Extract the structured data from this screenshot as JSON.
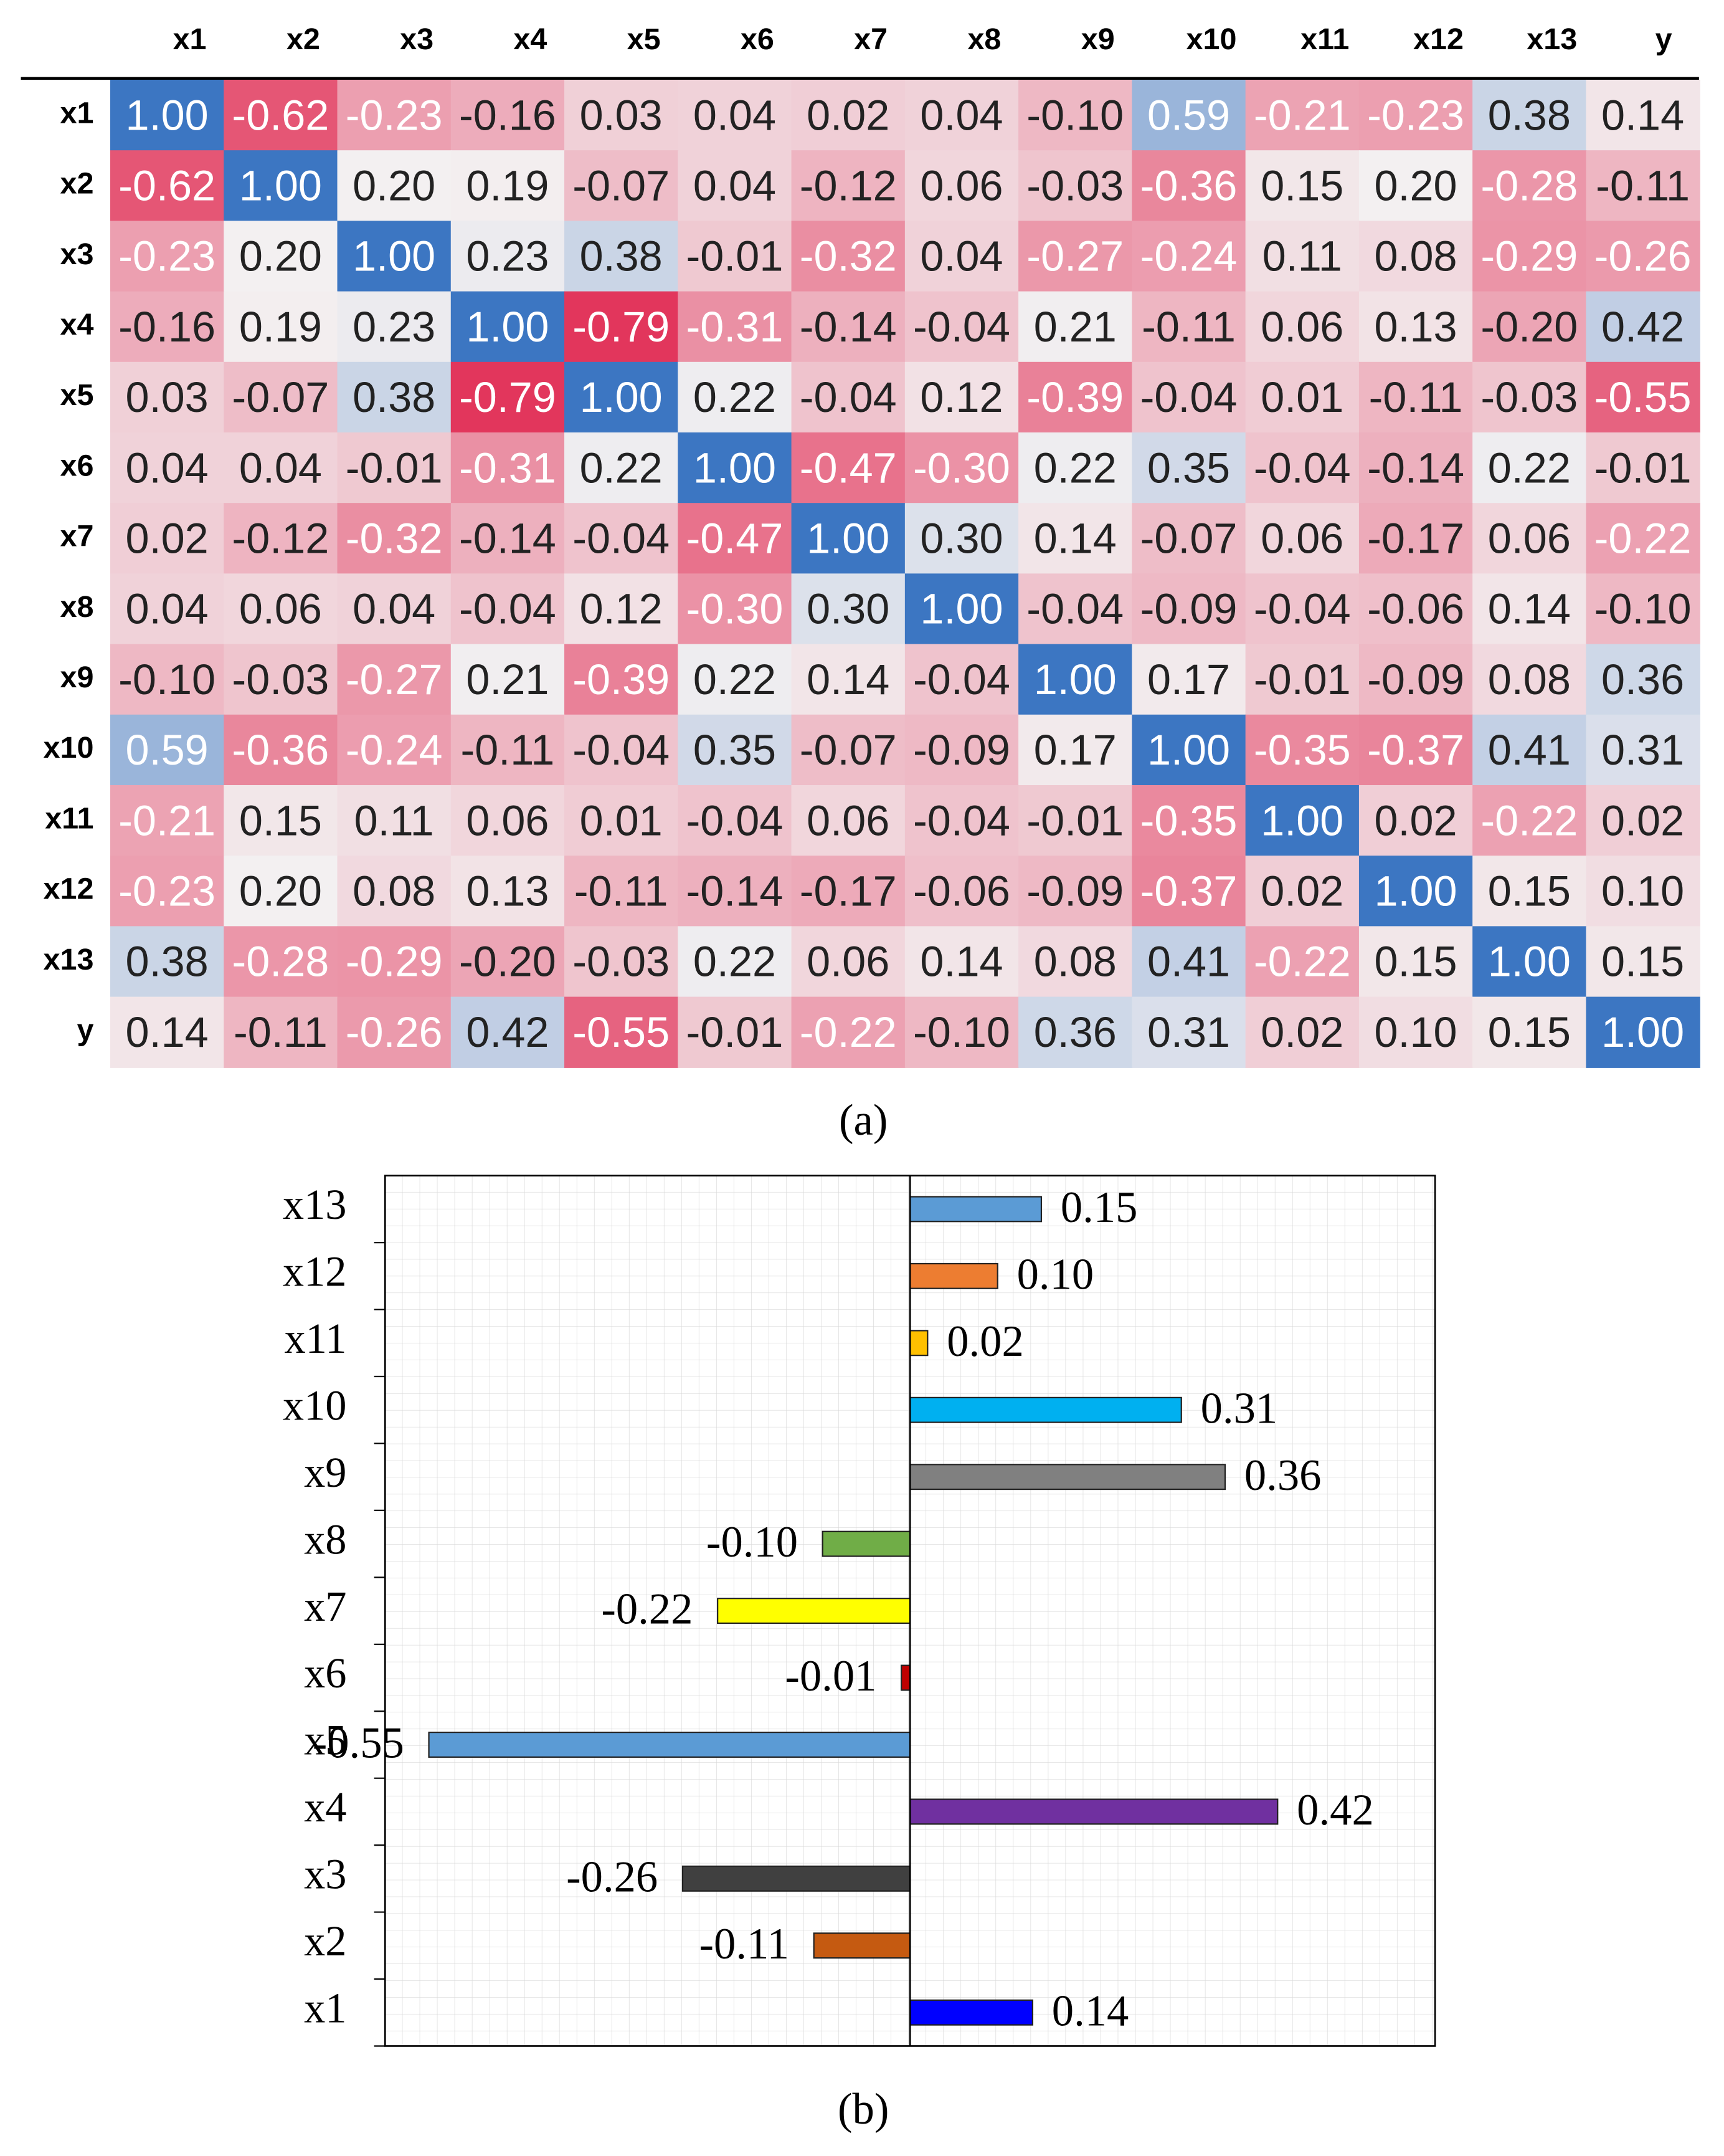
{
  "chart_data": [
    {
      "type": "heatmap",
      "caption": "(a)",
      "x_categories": [
        "x1",
        "x2",
        "x3",
        "x4",
        "x5",
        "x6",
        "x7",
        "x8",
        "x9",
        "x10",
        "x11",
        "x12",
        "x13",
        "y"
      ],
      "y_categories": [
        "x1",
        "x2",
        "x3",
        "x4",
        "x5",
        "x6",
        "x7",
        "x8",
        "x9",
        "x10",
        "x11",
        "x12",
        "x13",
        "y"
      ],
      "colormap": [
        "#e2345a",
        "#f3f0f1",
        "#3c76c2"
      ],
      "color_stops": [
        -0.8,
        0.2,
        1.0
      ],
      "values": [
        [
          1.0,
          -0.62,
          -0.23,
          -0.16,
          0.03,
          0.04,
          0.02,
          0.04,
          -0.1,
          0.59,
          -0.21,
          -0.23,
          0.38,
          0.14
        ],
        [
          -0.62,
          1.0,
          0.2,
          0.19,
          -0.07,
          0.04,
          -0.12,
          0.06,
          -0.03,
          -0.36,
          0.15,
          0.2,
          -0.28,
          -0.11
        ],
        [
          -0.23,
          0.2,
          1.0,
          0.23,
          0.38,
          -0.01,
          -0.32,
          0.04,
          -0.27,
          -0.24,
          0.11,
          0.08,
          -0.29,
          -0.26
        ],
        [
          -0.16,
          0.19,
          0.23,
          1.0,
          -0.79,
          -0.31,
          -0.14,
          -0.04,
          0.21,
          -0.11,
          0.06,
          0.13,
          -0.2,
          0.42
        ],
        [
          0.03,
          -0.07,
          0.38,
          -0.79,
          1.0,
          0.22,
          -0.04,
          0.12,
          -0.39,
          -0.04,
          0.01,
          -0.11,
          -0.03,
          -0.55
        ],
        [
          0.04,
          0.04,
          -0.01,
          -0.31,
          0.22,
          1.0,
          -0.47,
          -0.3,
          0.22,
          0.35,
          -0.04,
          -0.14,
          0.22,
          -0.01
        ],
        [
          0.02,
          -0.12,
          -0.32,
          -0.14,
          -0.04,
          -0.47,
          1.0,
          0.3,
          0.14,
          -0.07,
          0.06,
          -0.17,
          0.06,
          -0.22
        ],
        [
          0.04,
          0.06,
          0.04,
          -0.04,
          0.12,
          -0.3,
          0.3,
          1.0,
          -0.04,
          -0.09,
          -0.04,
          -0.06,
          0.14,
          -0.1
        ],
        [
          -0.1,
          -0.03,
          -0.27,
          0.21,
          -0.39,
          0.22,
          0.14,
          -0.04,
          1.0,
          0.17,
          -0.01,
          -0.09,
          0.08,
          0.36
        ],
        [
          0.59,
          -0.36,
          -0.24,
          -0.11,
          -0.04,
          0.35,
          -0.07,
          -0.09,
          0.17,
          1.0,
          -0.35,
          -0.37,
          0.41,
          0.31
        ],
        [
          -0.21,
          0.15,
          0.11,
          0.06,
          0.01,
          -0.04,
          0.06,
          -0.04,
          -0.01,
          -0.35,
          1.0,
          0.02,
          -0.22,
          0.02
        ],
        [
          -0.23,
          0.2,
          0.08,
          0.13,
          -0.11,
          -0.14,
          -0.17,
          -0.06,
          -0.09,
          -0.37,
          0.02,
          1.0,
          0.15,
          0.1
        ],
        [
          0.38,
          -0.28,
          -0.29,
          -0.2,
          -0.03,
          0.22,
          0.06,
          0.14,
          0.08,
          0.41,
          -0.22,
          0.15,
          1.0,
          0.15
        ],
        [
          0.14,
          -0.11,
          -0.26,
          0.42,
          -0.55,
          -0.01,
          -0.22,
          -0.1,
          0.36,
          0.31,
          0.02,
          0.1,
          0.15,
          1.0
        ]
      ],
      "value_labels": [
        [
          "1.00",
          "-0.62",
          "-0.23",
          "-0.16",
          "0.03",
          "0.04",
          "0.02",
          "0.04",
          "-0.10",
          "0.59",
          "-0.21",
          "-0.23",
          "0.38",
          "0.14"
        ],
        [
          "-0.62",
          "1.00",
          "0.20",
          "0.19",
          "-0.07",
          "0.04",
          "-0.12",
          "0.06",
          "-0.03",
          "-0.36",
          "0.15",
          "0.20",
          "-0.28",
          "-0.11"
        ],
        [
          "-0.23",
          "0.20",
          "1.00",
          "0.23",
          "0.38",
          "-0.01",
          "-0.32",
          "0.04",
          "-0.27",
          "-0.24",
          "0.11",
          "0.08",
          "-0.29",
          "-0.26"
        ],
        [
          "-0.16",
          "0.19",
          "0.23",
          "1.00",
          "-0.79",
          "-0.31",
          "-0.14",
          "-0.04",
          "0.21",
          "-0.11",
          "0.06",
          "0.13",
          "-0.20",
          "0.42"
        ],
        [
          "0.03",
          "-0.07",
          "0.38",
          "-0.79",
          "1.00",
          "0.22",
          "-0.04",
          "0.12",
          "-0.39",
          "-0.04",
          "0.01",
          "-0.11",
          "-0.03",
          "-0.55"
        ],
        [
          "0.04",
          "0.04",
          "-0.01",
          "-0.31",
          "0.22",
          "1.00",
          "-0.47",
          "-0.30",
          "0.22",
          "0.35",
          "-0.04",
          "-0.14",
          "0.22",
          "-0.01"
        ],
        [
          "0.02",
          "-0.12",
          "-0.32",
          "-0.14",
          "-0.04",
          "-0.47",
          "1.00",
          "0.30",
          "0.14",
          "-0.07",
          "0.06",
          "-0.17",
          "0.06",
          "-0.22"
        ],
        [
          "0.04",
          "0.06",
          "0.04",
          "-0.04",
          "0.12",
          "-0.30",
          "0.30",
          "1.00",
          "-0.04",
          "-0.09",
          "-0.04",
          "-0.06",
          "0.14",
          "-0.10"
        ],
        [
          "-0.10",
          "-0.03",
          "-0.27",
          "0.21",
          "-0.39",
          "0.22",
          "0.14",
          "-0.04",
          "1.00",
          "0.17",
          "-0.01",
          "-0.09",
          "0.08",
          "0.36"
        ],
        [
          "0.59",
          "-0.36",
          "-0.24",
          "-0.11",
          "-0.04",
          "0.35",
          "-0.07",
          "-0.09",
          "0.17",
          "1.00",
          "-0.35",
          "-0.37",
          "0.41",
          "0.31"
        ],
        [
          "-0.21",
          "0.15",
          "0.11",
          "0.06",
          "0.01",
          "-0.04",
          "0.06",
          "-0.04",
          "-0.01",
          "-0.35",
          "1.00",
          "0.02",
          "-0.22",
          "0.02"
        ],
        [
          "-0.23",
          "0.20",
          "0.08",
          "0.13",
          "-0.11",
          "-0.14",
          "-0.17",
          "-0.06",
          "-0.09",
          "-0.37",
          "0.02",
          "1.00",
          "0.15",
          "0.10"
        ],
        [
          "0.38",
          "-0.28",
          "-0.29",
          "-0.20",
          "-0.03",
          "0.22",
          "0.06",
          "0.14",
          "0.08",
          "0.41",
          "-0.22",
          "0.15",
          "1.00",
          "0.15"
        ],
        [
          "0.14",
          "-0.11",
          "-0.26",
          "0.42",
          "-0.55",
          "-0.01",
          "-0.22",
          "-0.10",
          "0.36",
          "0.31",
          "0.02",
          "0.10",
          "0.15",
          "1.00"
        ]
      ]
    },
    {
      "type": "barh",
      "caption": "(b)",
      "categories": [
        "x1",
        "x2",
        "x3",
        "x4",
        "x5",
        "x6",
        "x7",
        "x8",
        "x9",
        "x10",
        "x11",
        "x12",
        "x13"
      ],
      "values": [
        0.14,
        -0.11,
        -0.26,
        0.42,
        -0.55,
        -0.01,
        -0.22,
        -0.1,
        0.36,
        0.31,
        0.02,
        0.1,
        0.15
      ],
      "value_labels": [
        "0.14",
        "-0.11",
        "-0.26",
        "0.42",
        "-0.55",
        "-0.01",
        "-0.22",
        "-0.10",
        "0.36",
        "0.31",
        "0.02",
        "0.10",
        "0.15"
      ],
      "colors": [
        "#0000ff",
        "#c55a11",
        "#404040",
        "#7030a0",
        "#5b9bd5",
        "#c00000",
        "#ffff00",
        "#70ad47",
        "#808080",
        "#00b0f0",
        "#ffc000",
        "#ed7d31",
        "#5b9bd5"
      ],
      "xlim": [
        -0.6,
        0.6
      ],
      "grid": true
    }
  ]
}
